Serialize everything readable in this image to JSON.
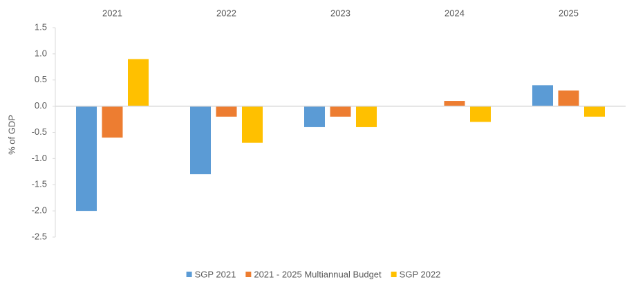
{
  "chart_data": {
    "type": "bar",
    "categories": [
      "2021",
      "2022",
      "2023",
      "2024",
      "2025"
    ],
    "y_label": "% of GDP",
    "series": [
      {
        "name": "SGP 2021",
        "color": "#5b9bd5",
        "values": [
          -2.0,
          -1.3,
          -0.4,
          0,
          0.4
        ]
      },
      {
        "name": "2021 - 2025 Multiannual Budget",
        "color": "#ed7d31",
        "values": [
          -0.6,
          -0.2,
          -0.2,
          0.1,
          0.3
        ]
      },
      {
        "name": "SGP 2022",
        "color": "#ffc000",
        "values": [
          0.9,
          -0.7,
          -0.4,
          -0.3,
          -0.2
        ]
      }
    ],
    "ylim": [
      -2.5,
      1.5
    ],
    "yticks": [
      1.5,
      {
        "value": 1,
        "label": "1.0"
      },
      0.5,
      {
        "value": 0,
        "label": "0.0"
      },
      -0.5,
      {
        "value": -1,
        "label": "-1.0"
      },
      -1.5,
      {
        "value": -2,
        "label": "-2.0"
      },
      -2.5
    ],
    "legend": "bottom"
  }
}
